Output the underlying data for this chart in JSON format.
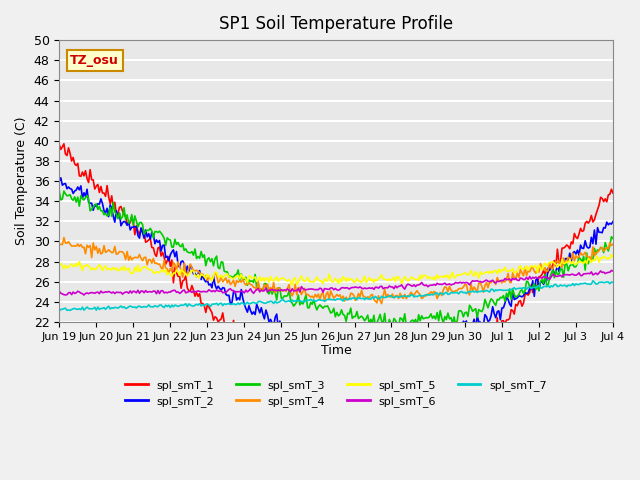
{
  "title": "SP1 Soil Temperature Profile",
  "ylabel": "Soil Temperature (C)",
  "xlabel": "Time",
  "ylim": [
    22,
    50
  ],
  "series_colors": {
    "spl_smT_1": "#FF0000",
    "spl_smT_2": "#0000FF",
    "spl_smT_3": "#00CC00",
    "spl_smT_4": "#FF8C00",
    "spl_smT_5": "#FFFF00",
    "spl_smT_6": "#CC00CC",
    "spl_smT_7": "#00CCCC"
  },
  "tz_label": "TZ_osu",
  "bg_color": "#E8E8E8",
  "grid_color": "#FFFFFF",
  "n_days": 15,
  "tick_positions": [
    0,
    1,
    2,
    3,
    4,
    5,
    6,
    7,
    8,
    9,
    10,
    11,
    12,
    13,
    14,
    15
  ],
  "tick_labels": [
    "Jun 19",
    "Jun 20",
    "Jun 21",
    "Jun 22",
    "Jun 23",
    "Jun 24",
    "Jun 25",
    "Jun 26",
    "Jun 27",
    "Jun 28",
    "Jun 29",
    "Jun 30",
    "Jul 1",
    "Jul 2",
    "Jul 3",
    "Jul 4"
  ],
  "yticks": [
    22,
    24,
    26,
    28,
    30,
    32,
    34,
    36,
    38,
    40,
    42,
    44,
    46,
    48,
    50
  ]
}
